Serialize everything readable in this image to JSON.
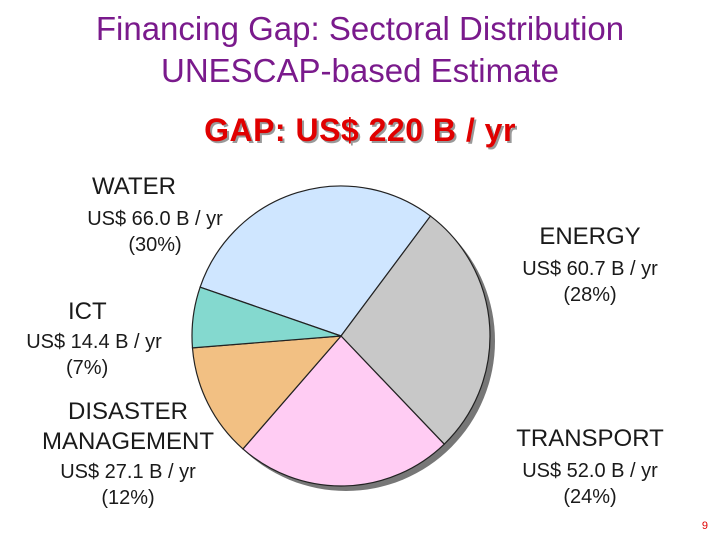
{
  "header": {
    "title_line1": "Financing Gap: Sectoral Distribution",
    "title_line2": "UNESCAP-based Estimate",
    "gap_title": "GAP: US$ 220 B / yr"
  },
  "page_number": "9",
  "chart_data": {
    "type": "pie",
    "title": "GAP: US$ 220 B / yr",
    "slices": [
      {
        "name": "WATER",
        "value": 66.0,
        "value_label": "US$ 66.0 B / yr",
        "pct_label": "(30%)",
        "color": "#cfe6ff"
      },
      {
        "name": "ENERGY",
        "value": 60.7,
        "value_label": "US$ 60.7 B / yr",
        "pct_label": "(28%)",
        "color": "#c8c8c8"
      },
      {
        "name": "TRANSPORT",
        "value": 52.0,
        "value_label": "US$ 52.0 B / yr",
        "pct_label": "(24%)",
        "color": "#ffccf3"
      },
      {
        "name": "DISASTER MANAGEMENT",
        "name_line1": "DISASTER",
        "name_line2": "MANAGEMENT",
        "value": 27.1,
        "value_label": "US$ 27.1 B / yr",
        "pct_label": "(12%)",
        "color": "#f2c083"
      },
      {
        "name": "ICT",
        "value": 14.4,
        "value_label": "US$ 14.4 B / yr",
        "pct_label": "(7%)",
        "color": "#84d9cf"
      }
    ]
  }
}
